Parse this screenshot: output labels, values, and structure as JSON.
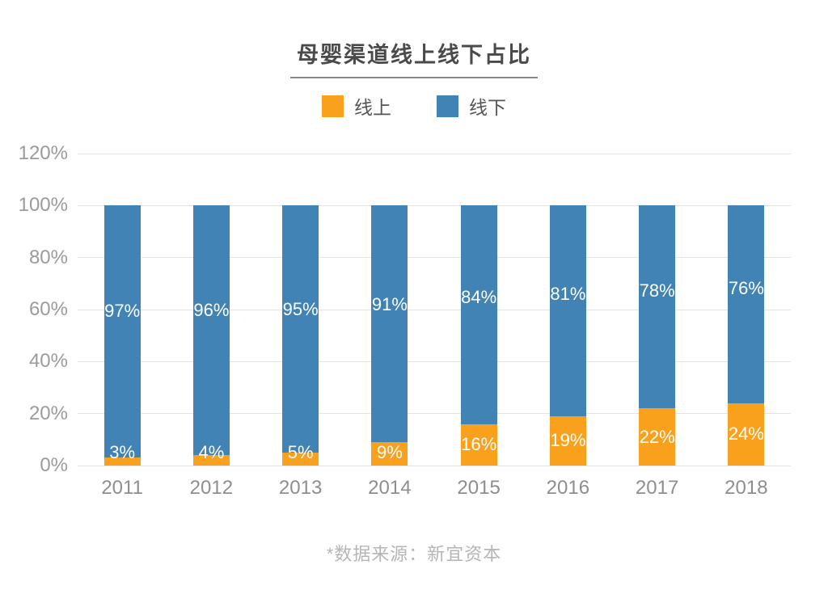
{
  "title": "母婴渠道线上线下占比",
  "footer": "*数据来源：新宜资本",
  "legend": {
    "items": [
      {
        "label": "线上",
        "color": "#F9A01C"
      },
      {
        "label": "线下",
        "color": "#4183B5"
      }
    ]
  },
  "colors": {
    "online": "#F9A01C",
    "offline": "#4183B5",
    "gridline": "#E4E4E4",
    "axis_text": "#9B9B9B",
    "title_text": "#4A4A4A",
    "footer_text": "#B5B5B5",
    "value_label_text": "#FFFFFF"
  },
  "chart_data": {
    "type": "bar",
    "stacked": true,
    "title": "母婴渠道线上线下占比",
    "categories": [
      "2011",
      "2012",
      "2013",
      "2014",
      "2015",
      "2016",
      "2017",
      "2018"
    ],
    "series": [
      {
        "name": "线上",
        "color": "#F9A01C",
        "values": [
          3,
          4,
          5,
          9,
          16,
          19,
          22,
          24
        ],
        "labels": [
          "3%",
          "4%",
          "5%",
          "9%",
          "16%",
          "19%",
          "22%",
          "24%"
        ]
      },
      {
        "name": "线下",
        "color": "#4183B5",
        "values": [
          97,
          96,
          95,
          91,
          84,
          81,
          78,
          76
        ],
        "labels": [
          "97%",
          "96%",
          "95%",
          "91%",
          "84%",
          "81%",
          "78%",
          "76%"
        ]
      }
    ],
    "ylim": [
      0,
      120
    ],
    "yticks": [
      0,
      20,
      40,
      60,
      80,
      100,
      120
    ],
    "ytick_labels": [
      "0%",
      "20%",
      "40%",
      "60%",
      "80%",
      "100%",
      "120%"
    ],
    "grid": true,
    "legend_position": "top",
    "source_note": "*数据来源：新宜资本"
  }
}
